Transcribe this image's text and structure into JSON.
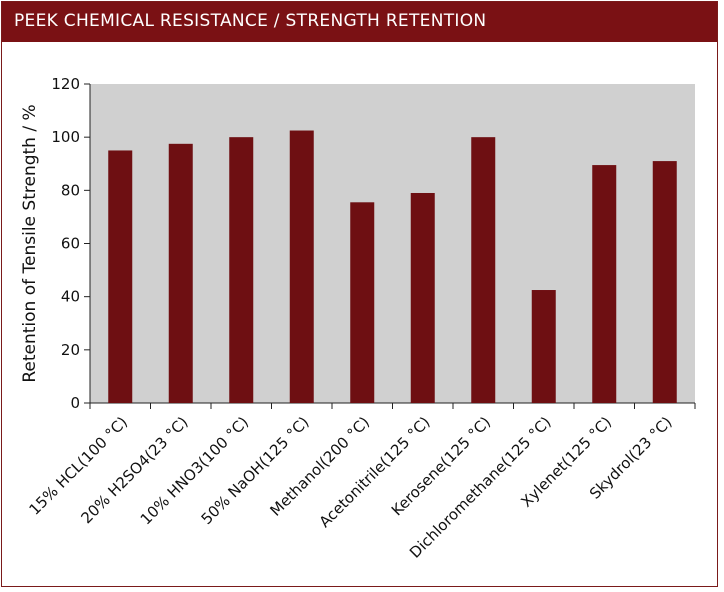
{
  "header": {
    "title": "PEEK CHEMICAL RESISTANCE / STRENGTH RETENTION"
  },
  "colors": {
    "header_bg": "#7a1114",
    "bar": "#6e0f12",
    "plot_bg": "#d0d0d0"
  },
  "chart_data": {
    "type": "bar",
    "title": "PEEK CHEMICAL RESISTANCE / STRENGTH RETENTION",
    "xlabel": "",
    "ylabel": "Retention of Tensile Strength / %",
    "ylim": [
      0,
      120
    ],
    "yticks": [
      0,
      20,
      40,
      60,
      80,
      100,
      120
    ],
    "grid": false,
    "categories": [
      "15% HCL(100 °C)",
      "20% H2SO4(23 °C)",
      "10% HNO3(100 °C)",
      "50% NaOH(125 °C)",
      "Methanol(200 °C)",
      "Acetonitrile(125 °C)",
      "Kerosene(125 °C)",
      "Dichloromethane(125 °C)",
      "Xylenet(125 °C)",
      "Skydrol(23 °C)"
    ],
    "values": [
      95,
      97.5,
      100,
      102.5,
      75.5,
      79,
      100,
      42.5,
      89.5,
      91
    ]
  }
}
